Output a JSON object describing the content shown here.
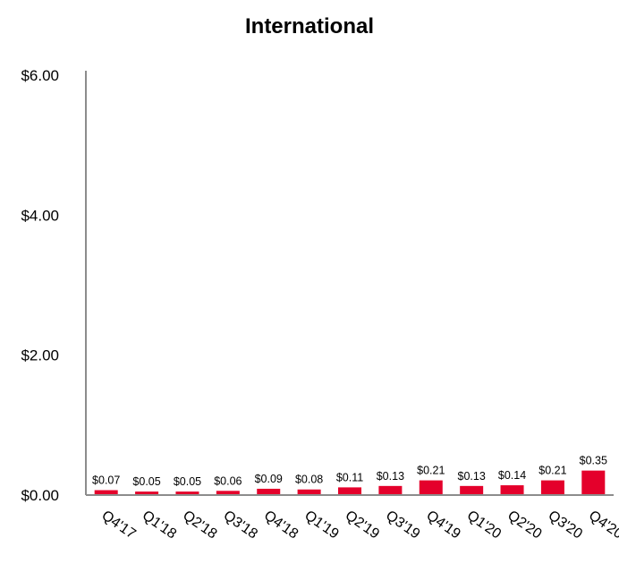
{
  "chart_data": {
    "type": "bar",
    "title": "International",
    "xlabel": "",
    "ylabel": "",
    "categories": [
      "Q4'17",
      "Q1'18",
      "Q2'18",
      "Q3'18",
      "Q4'18",
      "Q1'19",
      "Q2'19",
      "Q3'19",
      "Q4'19",
      "Q1'20",
      "Q2'20",
      "Q3'20",
      "Q4'20"
    ],
    "values": [
      0.07,
      0.05,
      0.05,
      0.06,
      0.09,
      0.08,
      0.11,
      0.13,
      0.21,
      0.13,
      0.14,
      0.21,
      0.35
    ],
    "data_labels": [
      "$0.07",
      "$0.05",
      "$0.05",
      "$0.06",
      "$0.09",
      "$0.08",
      "$0.11",
      "$0.13",
      "$0.21",
      "$0.13",
      "$0.14",
      "$0.21",
      "$0.35"
    ],
    "ylim": [
      0,
      6
    ],
    "yticks": [
      0,
      2,
      4,
      6
    ],
    "ytick_labels": [
      "$0.00",
      "$2.00",
      "$4.00",
      "$6.00"
    ],
    "grid": false,
    "legend": "none",
    "bar_color": "#e4002b",
    "axis_color": "#8c8c8c"
  }
}
